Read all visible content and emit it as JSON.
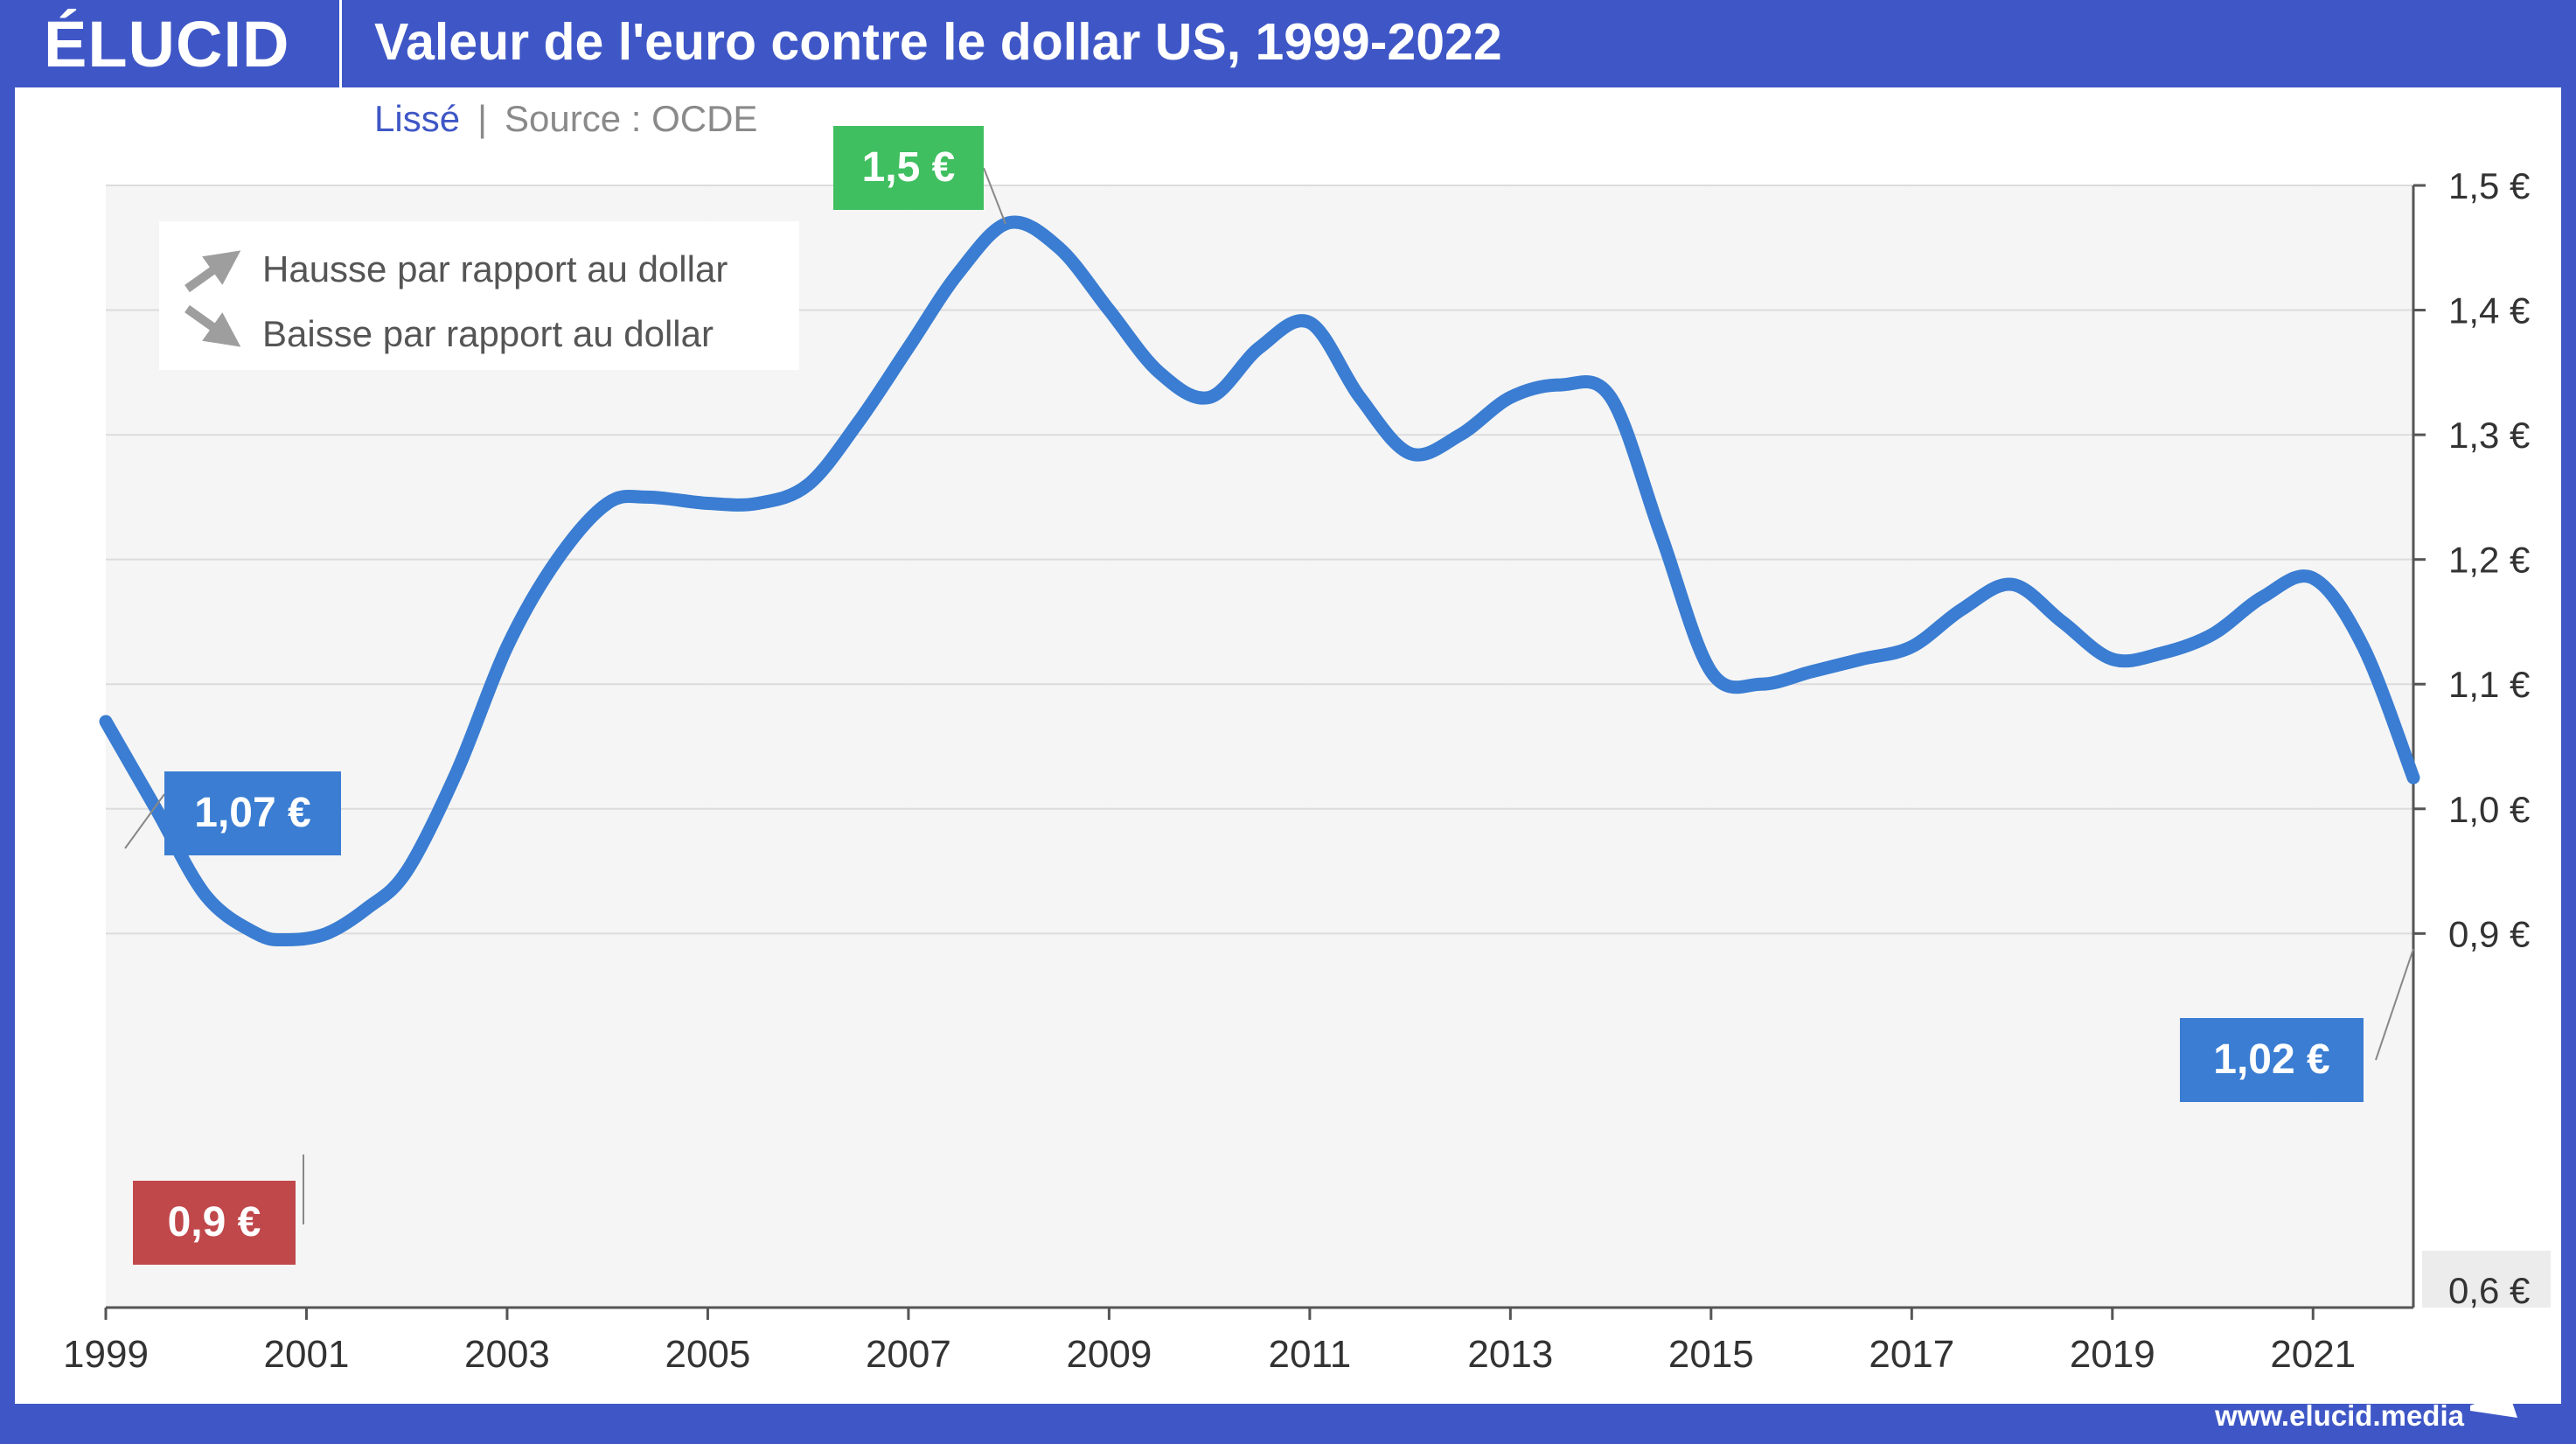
{
  "brand": {
    "logo": "ÉLUCID",
    "url": "www.elucid.media"
  },
  "header": {
    "title": "Valeur de l'euro contre le dollar US, 1999-2022",
    "subtitle_left": "Lissé",
    "subtitle_separator": "|",
    "subtitle_right": "Source : OCDE"
  },
  "legend": {
    "up_label": "Hausse par rapport au dollar",
    "down_label": "Baisse par rapport au dollar"
  },
  "colors": {
    "line": "#3a7dd2",
    "blue_label": "#3a7dd2",
    "green_label": "#3fbf5f",
    "red_label": "#c0474a",
    "frame": "#3f57c6"
  },
  "chart_data": {
    "type": "line",
    "title": "Valeur de l'euro contre le dollar US, 1999-2022",
    "xlabel": "",
    "ylabel": "",
    "xlim": [
      1999,
      2022
    ],
    "ylim": [
      0.6,
      1.5
    ],
    "x_ticks": [
      1999,
      2001,
      2003,
      2005,
      2007,
      2009,
      2011,
      2013,
      2015,
      2017,
      2019,
      2021
    ],
    "x_tick_labels": [
      "1999",
      "2001",
      "2003",
      "2005",
      "2007",
      "2009",
      "2011",
      "2013",
      "2015",
      "2017",
      "2019",
      "2021"
    ],
    "y_ticks": [
      0.9,
      1.0,
      1.1,
      1.2,
      1.3,
      1.4,
      1.5
    ],
    "y_tick_labels": [
      "0,9 €",
      "1,0 €",
      "1,1 €",
      "1,2 €",
      "1,3 €",
      "1,4 €",
      "1,5 €"
    ],
    "y_floor_label": "0,6 €",
    "grid": true,
    "legend_position": "top-left",
    "series": [
      {
        "x": [
          1999,
          1999.5,
          2000,
          2000.5,
          2000.8,
          2001.2,
          2001.6,
          2002,
          2002.5,
          2003,
          2003.5,
          2004,
          2004.4,
          2005,
          2005.5,
          2006,
          2006.5,
          2007,
          2007.5,
          2008,
          2008.5,
          2009,
          2009.5,
          2010,
          2010.5,
          2011,
          2011.5,
          2012,
          2012.5,
          2013,
          2013.5,
          2014,
          2014.5,
          2015,
          2015.5,
          2016,
          2016.5,
          2017,
          2017.5,
          2018,
          2018.5,
          2019,
          2019.5,
          2020,
          2020.5,
          2021,
          2021.5,
          2022
        ],
        "y": [
          1.07,
          1.0,
          0.93,
          0.9,
          0.895,
          0.9,
          0.92,
          0.95,
          1.03,
          1.13,
          1.2,
          1.245,
          1.25,
          1.245,
          1.245,
          1.26,
          1.31,
          1.37,
          1.43,
          1.47,
          1.45,
          1.4,
          1.35,
          1.33,
          1.37,
          1.39,
          1.33,
          1.285,
          1.3,
          1.33,
          1.34,
          1.33,
          1.22,
          1.11,
          1.1,
          1.11,
          1.12,
          1.13,
          1.16,
          1.18,
          1.15,
          1.12,
          1.125,
          1.14,
          1.17,
          1.185,
          1.13,
          1.025
        ]
      }
    ],
    "annotations": [
      {
        "text": "1,07 €",
        "x": 1999,
        "y": 1.07,
        "color": "blue"
      },
      {
        "text": "0,9 €",
        "x": 2000.8,
        "y": 0.895,
        "color": "red"
      },
      {
        "text": "1,5 €",
        "x": 2008,
        "y": 1.47,
        "color": "green"
      },
      {
        "text": "1,02 €",
        "x": 2022,
        "y": 1.025,
        "color": "blue"
      }
    ]
  }
}
